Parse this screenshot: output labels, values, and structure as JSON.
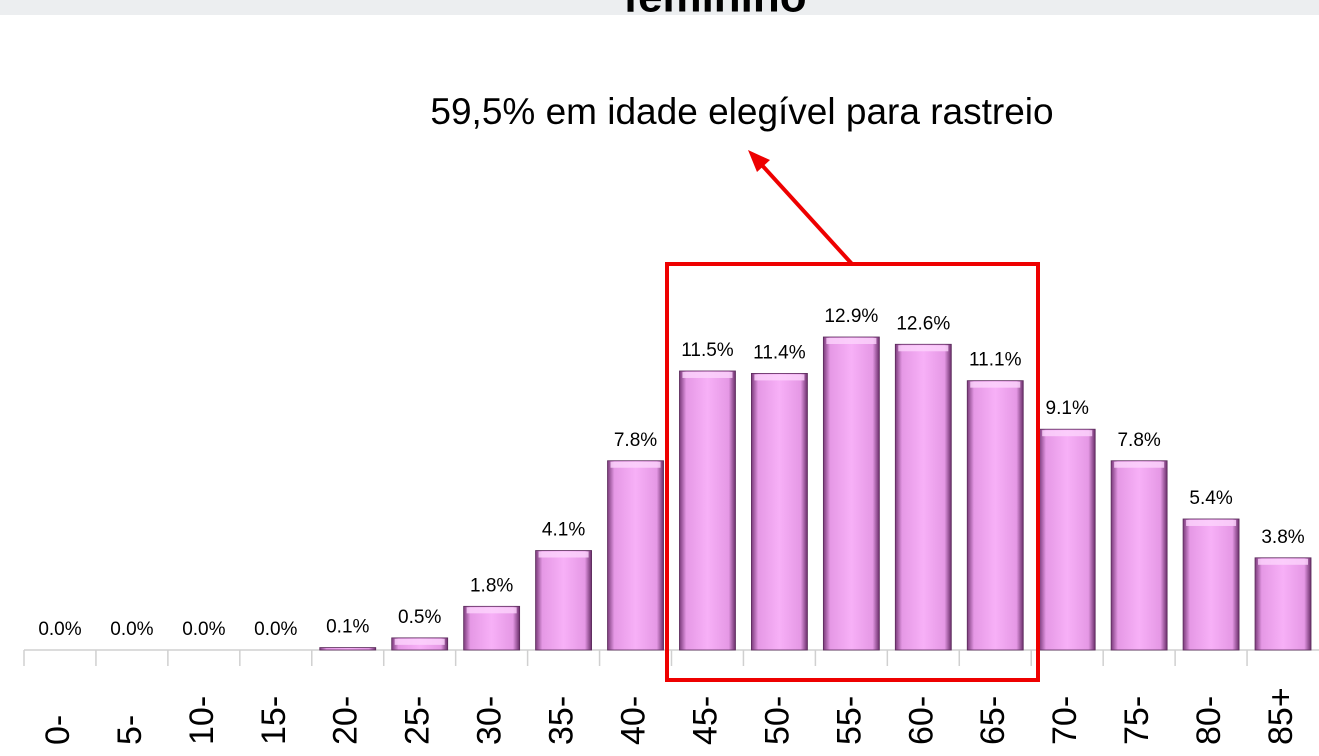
{
  "chart_data": {
    "type": "bar",
    "title": "feminino",
    "annotation": "59,5% em idade elegível para rastreio",
    "categories": [
      "0-",
      "5-",
      "10-",
      "15-",
      "20-",
      "25-",
      "30-",
      "35-",
      "40-",
      "45-",
      "50-",
      "55-",
      "60-",
      "65-",
      "70-",
      "75-",
      "80-",
      "85+"
    ],
    "values": [
      0.0,
      0.0,
      0.0,
      0.0,
      0.1,
      0.5,
      1.8,
      4.1,
      7.8,
      11.5,
      11.4,
      12.9,
      12.6,
      11.1,
      9.1,
      7.8,
      5.4,
      3.8
    ],
    "value_labels": [
      "0.0%",
      "0.0%",
      "0.0%",
      "0.0%",
      "0.1%",
      "0.5%",
      "1.8%",
      "4.1%",
      "7.8%",
      "11.5%",
      "11.4%",
      "12.9%",
      "12.6%",
      "11.1%",
      "9.1%",
      "7.8%",
      "5.4%",
      "3.8%"
    ],
    "color": "#f4a6f4"
  }
}
